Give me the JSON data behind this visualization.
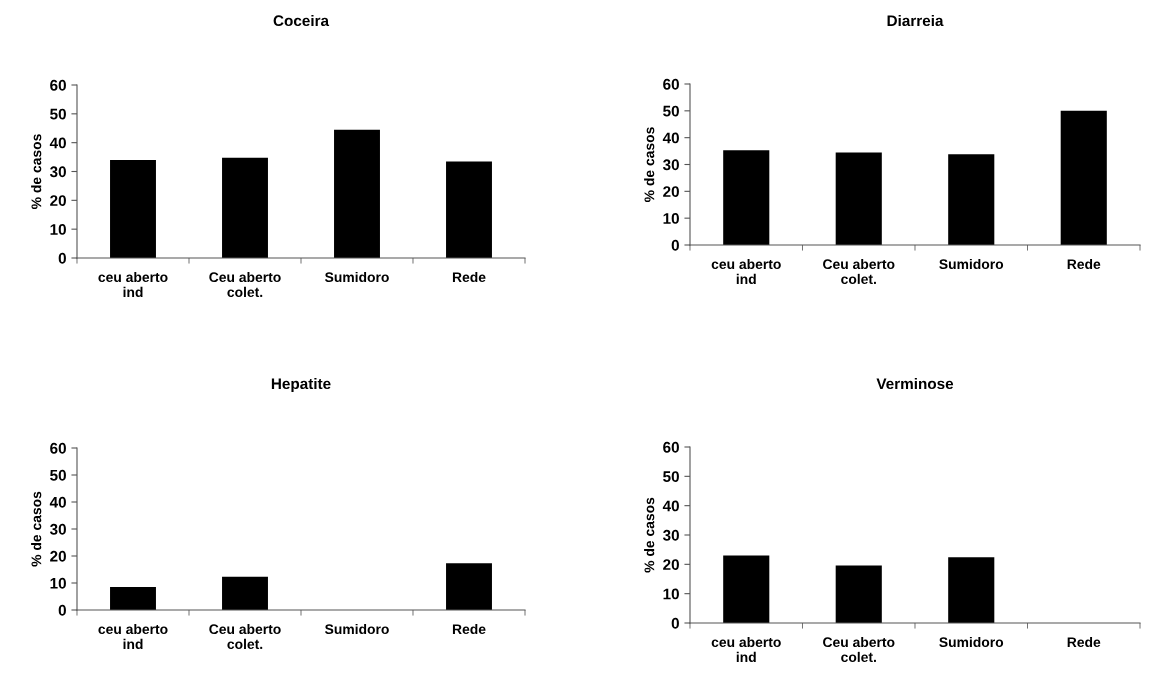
{
  "chart_data": [
    {
      "type": "bar",
      "title": "Coceira",
      "ylabel": "% de casos",
      "categories": [
        "ceu aberto\nind",
        "Ceu aberto\ncolet.",
        "Sumidoro",
        "Rede"
      ],
      "values": [
        34,
        34.8,
        44.5,
        33.5
      ],
      "color": "#000000",
      "ylim": [
        0,
        60
      ],
      "yticks": [
        0,
        10,
        20,
        30,
        40,
        50,
        60
      ],
      "grid": false
    },
    {
      "type": "bar",
      "title": "Diarreia",
      "ylabel": "% de casos",
      "categories": [
        "ceu aberto\nind",
        "Ceu aberto\ncolet.",
        "Sumidoro",
        "Rede"
      ],
      "values": [
        35.3,
        34.5,
        33.8,
        50
      ],
      "color": "#000000",
      "ylim": [
        0,
        60
      ],
      "yticks": [
        0,
        10,
        20,
        30,
        40,
        50,
        60
      ],
      "grid": false
    },
    {
      "type": "bar",
      "title": "Hepatite",
      "ylabel": "% de casos",
      "categories": [
        "ceu aberto\nind",
        "Ceu aberto\ncolet.",
        "Sumidoro",
        "Rede"
      ],
      "values": [
        8.5,
        12.3,
        0,
        17.3
      ],
      "color": "#000000",
      "ylim": [
        0,
        60
      ],
      "yticks": [
        0,
        10,
        20,
        30,
        40,
        50,
        60
      ],
      "grid": false
    },
    {
      "type": "bar",
      "title": "Verminose",
      "ylabel": "% de casos",
      "categories": [
        "ceu aberto\nind",
        "Ceu aberto\ncolet.",
        "Sumidoro",
        "Rede"
      ],
      "values": [
        23,
        19.6,
        22.4,
        0
      ],
      "color": "#000000",
      "ylim": [
        0,
        60
      ],
      "yticks": [
        0,
        10,
        20,
        30,
        40,
        50,
        60
      ],
      "grid": false
    }
  ]
}
